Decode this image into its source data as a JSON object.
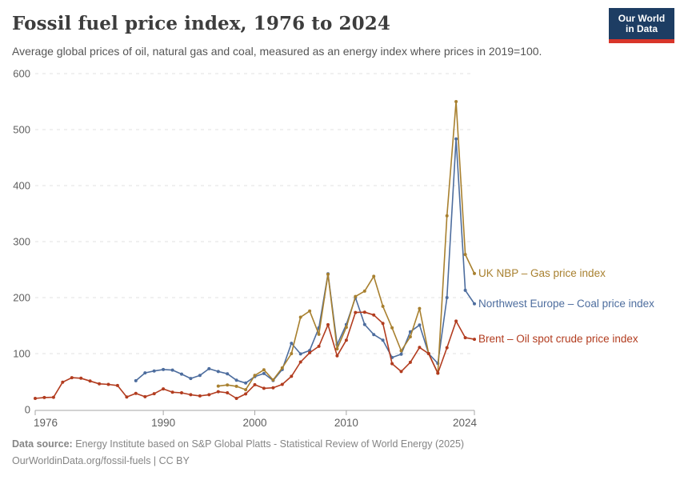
{
  "header": {
    "title": "Fossil fuel price index, 1976 to 2024",
    "subtitle": "Average global prices of oil, natural gas and coal, measured as an energy index where prices in 2019=100.",
    "logo": {
      "line1": "Our World",
      "line2": "in Data",
      "bg_color": "#1d3d63",
      "accent_color": "#d8352a"
    }
  },
  "footer": {
    "source_label": "Data source:",
    "source_text": " Energy Institute based on S&P Global Platts - Statistical Review of World Energy (2025)",
    "url": "OurWorldinData.org/fossil-fuels",
    "separator": " | ",
    "license": "CC BY"
  },
  "chart_data": {
    "type": "line",
    "title": "Fossil fuel price index, 1976 to 2024",
    "xlabel": "",
    "ylabel": "",
    "unit_note": "energy price index, 2019=100",
    "x_range": [
      1976,
      2024
    ],
    "x_ticks": [
      1976,
      1990,
      2000,
      2010,
      2024
    ],
    "ylim": [
      0,
      600
    ],
    "y_ticks": [
      0,
      100,
      200,
      300,
      400,
      500,
      600
    ],
    "grid": "horizontal dashed",
    "legend_position": "right of line endpoints",
    "axis_color": "#a5a5a5",
    "grid_color": "#e0e0e0",
    "tick_text_color": "#5f5f5f",
    "series": [
      {
        "id": "coal",
        "label": "Northwest Europe – Coal price index",
        "color": "#4d6d9e",
        "start_year": 1987,
        "values": [
          51.5,
          65.5,
          69,
          71.5,
          70.5,
          63.5,
          55.5,
          61,
          73,
          68,
          64,
          52.5,
          47.5,
          59,
          64.5,
          52,
          71.5,
          118.5,
          99.5,
          105.5,
          146,
          242.5,
          116,
          152,
          200,
          152,
          134,
          124,
          93,
          99,
          139,
          151,
          100,
          82.5,
          200,
          483.5,
          213,
          189
        ]
      },
      {
        "id": "gas",
        "label": "UK NBP – Gas price index",
        "color": "#a8802f",
        "start_year": 1996,
        "values": [
          42,
          44,
          41.5,
          35.5,
          61,
          71,
          53,
          74.5,
          100,
          165,
          176,
          134.5,
          241.5,
          108.5,
          147,
          202,
          211.5,
          238,
          184.5,
          146,
          105,
          130,
          180.5,
          100,
          65,
          346,
          550,
          277,
          243
        ]
      },
      {
        "id": "oil",
        "label": "Brent – Oil spot crude price index",
        "color": "#b23c1f",
        "start_year": 1976,
        "values": [
          20,
          21.5,
          22,
          49,
          57,
          56,
          51,
          46,
          45,
          43,
          22.5,
          29,
          23,
          28.5,
          37,
          31,
          30,
          26.5,
          24.5,
          26.5,
          32,
          30,
          20,
          28,
          44.5,
          38,
          39,
          45,
          59.5,
          85,
          101.5,
          113,
          151.5,
          96,
          124,
          173.5,
          174,
          169,
          154,
          82,
          68,
          84.5,
          111,
          100,
          65,
          110.5,
          158,
          128.5,
          125.5
        ]
      }
    ]
  }
}
